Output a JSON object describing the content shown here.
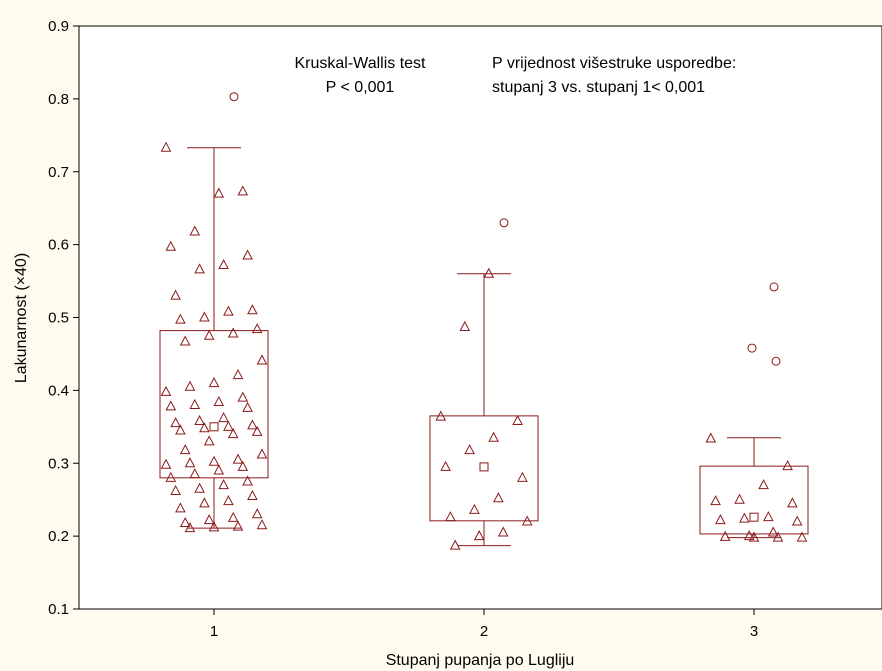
{
  "chart_data": {
    "type": "box",
    "xlabel": "Stupanj pupanja po Lugliju",
    "ylabel": "Lakunarnost (×40)",
    "ylim": [
      0.1,
      0.9
    ],
    "yticks": [
      "0.1",
      "0.2",
      "0.3",
      "0.4",
      "0.5",
      "0.6",
      "0.7",
      "0.8",
      "0.9"
    ],
    "categories": [
      "1",
      "2",
      "3"
    ],
    "annotations": {
      "test_title": "Kruskal-Wallis test",
      "test_p": "P < 0,001",
      "multi_title": "P vrijednost višestruke usporedbe:",
      "multi_result": "stupanj 3 vs. stupanj 1< 0,001"
    },
    "colors": {
      "mark": "#8b1a1a",
      "background": "#fffbee",
      "plot_area": "#ffffff"
    },
    "groups": [
      {
        "category": "1",
        "q1": 0.28,
        "median": 0.35,
        "q3": 0.482,
        "whisker_low": 0.211,
        "whisker_high": 0.733,
        "outliers": [
          0.803
        ],
        "points": [
          0.733,
          0.673,
          0.67,
          0.618,
          0.597,
          0.585,
          0.572,
          0.566,
          0.53,
          0.51,
          0.508,
          0.5,
          0.497,
          0.484,
          0.478,
          0.475,
          0.467,
          0.441,
          0.421,
          0.41,
          0.405,
          0.398,
          0.39,
          0.384,
          0.38,
          0.378,
          0.376,
          0.362,
          0.358,
          0.355,
          0.352,
          0.35,
          0.348,
          0.345,
          0.343,
          0.34,
          0.33,
          0.318,
          0.312,
          0.305,
          0.302,
          0.3,
          0.298,
          0.295,
          0.29,
          0.285,
          0.28,
          0.275,
          0.27,
          0.265,
          0.262,
          0.255,
          0.248,
          0.245,
          0.238,
          0.23,
          0.225,
          0.222,
          0.218,
          0.215,
          0.213,
          0.212,
          0.211
        ]
      },
      {
        "category": "2",
        "q1": 0.221,
        "median": 0.295,
        "q3": 0.365,
        "whisker_low": 0.187,
        "whisker_high": 0.56,
        "outliers": [
          0.63
        ],
        "points": [
          0.56,
          0.487,
          0.364,
          0.358,
          0.335,
          0.318,
          0.295,
          0.28,
          0.252,
          0.236,
          0.226,
          0.22,
          0.205,
          0.2,
          0.187
        ]
      },
      {
        "category": "3",
        "q1": 0.203,
        "median": 0.226,
        "q3": 0.296,
        "whisker_low": 0.198,
        "whisker_high": 0.335,
        "outliers": [
          0.542,
          0.458,
          0.44
        ],
        "points": [
          0.334,
          0.296,
          0.27,
          0.25,
          0.248,
          0.245,
          0.226,
          0.224,
          0.222,
          0.22,
          0.205,
          0.2,
          0.199,
          0.198,
          0.198,
          0.198
        ]
      }
    ]
  }
}
